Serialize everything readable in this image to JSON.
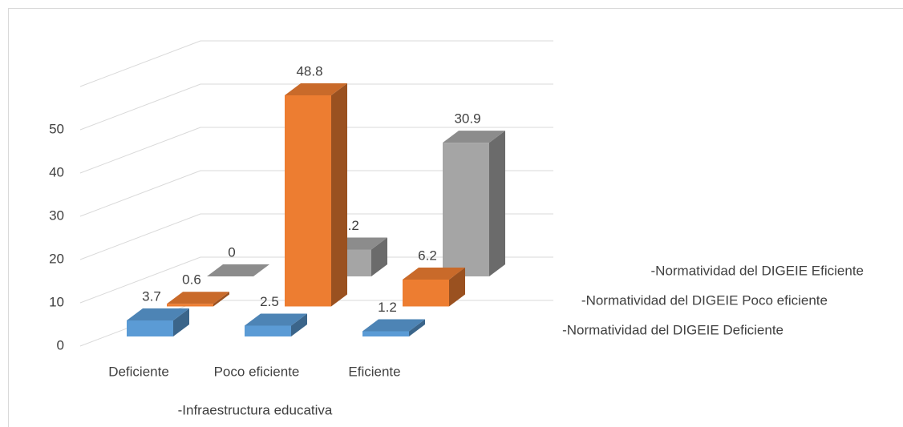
{
  "chart_data": {
    "type": "bar3d",
    "categories": [
      "Deficiente",
      "Poco eficiente",
      "Eficiente"
    ],
    "x_label": "-Infraestructura educativa",
    "series": [
      {
        "name": "-Normatividad del DIGEIE Deficiente",
        "color": "#5b9bd5",
        "values": [
          3.7,
          2.5,
          1.2
        ]
      },
      {
        "name": "-Normatividad del DIGEIE Poco eficiente",
        "color": "#ed7d31",
        "values": [
          0.6,
          48.8,
          6.2
        ]
      },
      {
        "name": "-Normatividad del DIGEIE Eficiente",
        "color": "#a5a5a5",
        "values": [
          0,
          6.2,
          30.9
        ]
      }
    ],
    "ylim": [
      0,
      60
    ],
    "yticks": [
      0,
      10,
      20,
      30,
      40,
      50
    ],
    "grid": true
  }
}
